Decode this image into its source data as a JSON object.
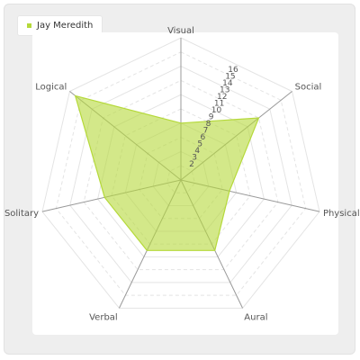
{
  "chart_data": {
    "type": "radar",
    "series": [
      {
        "name": "Jay Meredith",
        "color": "#b5d93a",
        "values": [
          8,
          14,
          7,
          11,
          11,
          11,
          19
        ]
      }
    ],
    "axes": [
      "Visual",
      "Social",
      "Physical",
      "Aural",
      "Verbal",
      "Solitary",
      "Logical"
    ],
    "range": [
      0,
      20
    ],
    "tick_labels": [
      "2",
      "3",
      "4",
      "5",
      "6",
      "7",
      "8",
      "9",
      "10",
      "11",
      "12",
      "13",
      "14",
      "15",
      "16"
    ],
    "grid": true,
    "legend": "top-left"
  },
  "legend": {
    "label": "Jay Meredith",
    "color": "#b5d93a"
  }
}
